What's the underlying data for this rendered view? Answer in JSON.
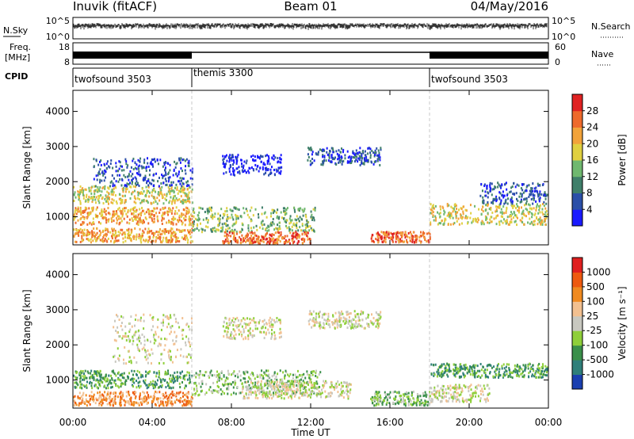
{
  "header": {
    "title_left": "Inuvik (fitACF)",
    "title_center": "Beam 01",
    "title_right": "04/May/2016"
  },
  "status_panels": {
    "nsky": {
      "label": "N.Sky",
      "left_ticks": [
        "10^5",
        "10^0"
      ],
      "right_ticks": [
        "10^5",
        "10^0"
      ],
      "right_label": "N.Search"
    },
    "freq": {
      "label_line1": "Freq.",
      "label_line2": "[MHz]",
      "left_ticks": [
        "18",
        "8"
      ],
      "right_ticks": [
        "60",
        "0"
      ],
      "right_label": "Nave",
      "trace_segments": [
        {
          "from": 0.0,
          "to": 6.0,
          "style": "dense"
        },
        {
          "from": 6.0,
          "to": 18.0,
          "style": "flat"
        },
        {
          "from": 18.0,
          "to": 24.0,
          "style": "dense"
        }
      ]
    },
    "cpid": {
      "label": "CPID",
      "segments": [
        {
          "name": "twofsound 3503",
          "start": 0.0,
          "end": 6.0
        },
        {
          "name": "themis 3300",
          "start": 6.0,
          "end": 18.0
        },
        {
          "name": "twofsound 3503",
          "start": 18.0,
          "end": 24.0
        }
      ]
    }
  },
  "chart_data": [
    {
      "type": "heatmap",
      "quantity": "power",
      "ylabel": "Slant Range [km]",
      "xlim": [
        0,
        24
      ],
      "ylim": [
        200,
        4600
      ],
      "yticks": [
        "1000",
        "2000",
        "3000",
        "4000"
      ],
      "colorbar": {
        "label": "Power [dB]",
        "ticks": [
          "4",
          "8",
          "12",
          "16",
          "20",
          "24",
          "28"
        ],
        "colors": [
          "#1a1aff",
          "#2b4fa8",
          "#3f7f6a",
          "#6fb86f",
          "#e0d040",
          "#f2a33a",
          "#ee6a2c",
          "#e02222"
        ]
      },
      "echo_regions": [
        {
          "t0": 0.0,
          "t1": 6.0,
          "r0": 300,
          "r1": 700,
          "level": 5
        },
        {
          "t0": 0.0,
          "t1": 6.0,
          "r0": 800,
          "r1": 1300,
          "level": 5
        },
        {
          "t0": 0.0,
          "t1": 6.0,
          "r0": 1400,
          "r1": 1900,
          "level": 4
        },
        {
          "t0": 1.0,
          "t1": 6.0,
          "r0": 1900,
          "r1": 2700,
          "level": 1
        },
        {
          "t0": 6.0,
          "t1": 12.2,
          "r0": 600,
          "r1": 1300,
          "level": 3
        },
        {
          "t0": 7.5,
          "t1": 10.5,
          "r0": 2200,
          "r1": 2800,
          "level": 0
        },
        {
          "t0": 7.5,
          "t1": 12.0,
          "r0": 250,
          "r1": 600,
          "level": 6
        },
        {
          "t0": 11.8,
          "t1": 15.5,
          "r0": 2500,
          "r1": 3000,
          "level": 1
        },
        {
          "t0": 15.0,
          "t1": 18.0,
          "r0": 300,
          "r1": 600,
          "level": 6
        },
        {
          "t0": 18.0,
          "t1": 24.0,
          "r0": 800,
          "r1": 1400,
          "level": 4
        },
        {
          "t0": 20.5,
          "t1": 24.0,
          "r0": 1400,
          "r1": 2000,
          "level": 1
        }
      ]
    },
    {
      "type": "heatmap",
      "quantity": "velocity",
      "xlabel": "Time UT",
      "ylabel": "Slant Range [km]",
      "xlim": [
        0,
        24
      ],
      "ylim": [
        200,
        4600
      ],
      "xticks": [
        "00:00",
        "04:00",
        "08:00",
        "12:00",
        "16:00",
        "20:00",
        "00:00"
      ],
      "yticks": [
        "1000",
        "2000",
        "3000",
        "4000"
      ],
      "colorbar": {
        "label": "Velocity [m s⁻¹]",
        "ticks": [
          "1000",
          "500",
          "100",
          "25",
          "-25",
          "-100",
          "-500",
          "-1000"
        ],
        "colors": [
          "#1a3fb0",
          "#2f7f7a",
          "#3a8f4a",
          "#8fcf3a",
          "#c8c8c0",
          "#f2c090",
          "#f08a20",
          "#ee5a10",
          "#e01f1f"
        ]
      },
      "echo_regions": [
        {
          "t0": 0.0,
          "t1": 6.0,
          "r0": 300,
          "r1": 700,
          "level": 6
        },
        {
          "t0": 0.0,
          "t1": 6.0,
          "r0": 800,
          "r1": 1300,
          "level": 2
        },
        {
          "t0": 2.0,
          "t1": 6.0,
          "r0": 1500,
          "r1": 2900,
          "level": 4
        },
        {
          "t0": 6.0,
          "t1": 12.5,
          "r0": 600,
          "r1": 1300,
          "level": 3
        },
        {
          "t0": 7.5,
          "t1": 10.5,
          "r0": 2200,
          "r1": 2800,
          "level": 4
        },
        {
          "t0": 11.8,
          "t1": 15.5,
          "r0": 2500,
          "r1": 3000,
          "level": 4
        },
        {
          "t0": 8.5,
          "t1": 14.0,
          "r0": 500,
          "r1": 1000,
          "level": 4
        },
        {
          "t0": 15.0,
          "t1": 18.0,
          "r0": 300,
          "r1": 700,
          "level": 3
        },
        {
          "t0": 18.0,
          "t1": 24.0,
          "r0": 1100,
          "r1": 1500,
          "level": 2
        },
        {
          "t0": 18.0,
          "t1": 21.0,
          "r0": 400,
          "r1": 900,
          "level": 4
        }
      ]
    }
  ]
}
